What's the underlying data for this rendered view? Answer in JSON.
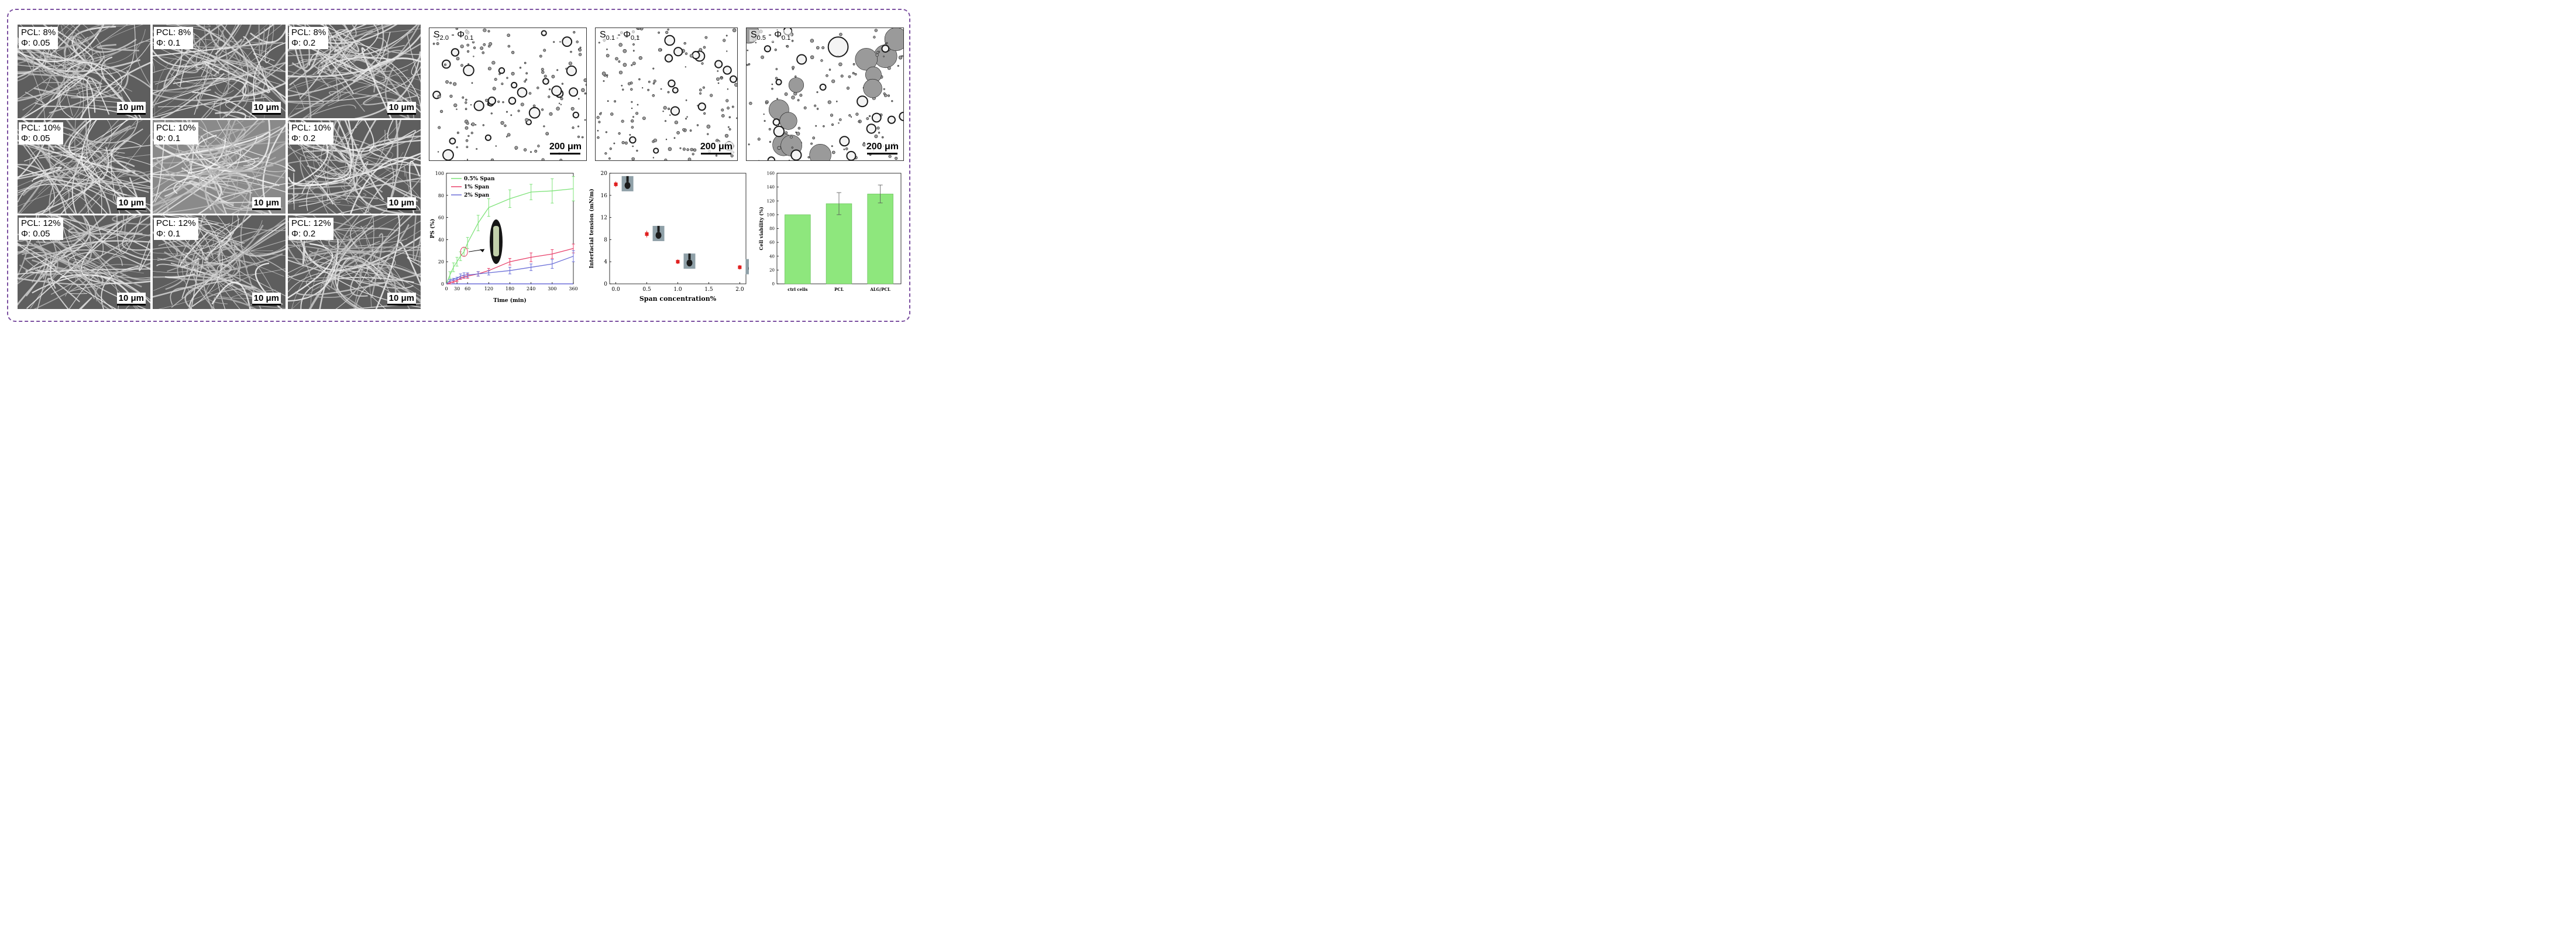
{
  "sem_panels": [
    {
      "line1": "PCL: 8%",
      "line2": "Φ: 0.05",
      "scale": "10 μm"
    },
    {
      "line1": "PCL: 8%",
      "line2": "Φ: 0.1",
      "scale": "10 μm"
    },
    {
      "line1": "PCL: 8%",
      "line2": "Φ: 0.2",
      "scale": "10 μm"
    },
    {
      "line1": "PCL: 10%",
      "line2": "Φ: 0.05",
      "scale": "10 μm"
    },
    {
      "line1": "PCL: 10%",
      "line2": "Φ: 0.1",
      "scale": "10 μm"
    },
    {
      "line1": "PCL: 10%",
      "line2": "Φ: 0.2",
      "scale": "10 μm"
    },
    {
      "line1": "PCL: 12%",
      "line2": "Φ: 0.05",
      "scale": "10 μm"
    },
    {
      "line1": "PCL: 12%",
      "line2": "Φ: 0.1",
      "scale": "10 μm"
    },
    {
      "line1": "PCL: 12%",
      "line2": "Φ: 0.2",
      "scale": "10 μm"
    }
  ],
  "micrographs": [
    {
      "s_main": "S",
      "s_sub": "2.0",
      "sep": " - ",
      "phi_main": "Φ",
      "phi_sub": "0.1",
      "scale": "200 μm"
    },
    {
      "s_main": "S",
      "s_sub": "0.1",
      "sep": " - ",
      "phi_main": "Φ",
      "phi_sub": "0.1",
      "scale": "200 μm"
    },
    {
      "s_main": "S",
      "s_sub": "0.5",
      "sep": " - ",
      "phi_main": "Φ",
      "phi_sub": "0.1",
      "scale": "200 μm"
    }
  ],
  "colors": {
    "frame": "#7b4fa0",
    "green": "#7fe37a",
    "red": "#e8406a",
    "blue": "#6b6fd8",
    "marker_red": "#e02020",
    "bar_green": "#8ee77d"
  },
  "chart_data": [
    {
      "type": "line",
      "xlabel": "Time (min)",
      "ylabel": "PS (%)",
      "xlim": [
        0,
        360
      ],
      "ylim": [
        0,
        100
      ],
      "xticks": [
        0,
        30,
        60,
        120,
        180,
        240,
        300,
        360
      ],
      "yticks": [
        0,
        20,
        40,
        60,
        80,
        100
      ],
      "legend_position": "top-left",
      "series": [
        {
          "name": "0.5% Span",
          "color": "#7fe37a",
          "x": [
            0,
            10,
            20,
            30,
            40,
            50,
            60,
            90,
            120,
            180,
            240,
            300,
            360
          ],
          "y": [
            0,
            8,
            15,
            20,
            25,
            29,
            37,
            55,
            69,
            77,
            83,
            84,
            86
          ],
          "err": [
            0,
            3,
            4,
            4,
            4,
            4,
            5,
            7,
            8,
            8,
            7,
            11,
            11
          ]
        },
        {
          "name": "1% Span",
          "color": "#e8406a",
          "x": [
            0,
            10,
            20,
            30,
            40,
            50,
            60,
            90,
            120,
            180,
            240,
            300,
            360
          ],
          "y": [
            0,
            1,
            2,
            3,
            5,
            6,
            7,
            9,
            12,
            20,
            24,
            27,
            32
          ],
          "err": [
            0,
            1,
            1,
            1,
            1,
            1,
            2,
            2,
            2,
            3,
            4,
            4,
            4
          ]
        },
        {
          "name": "2% Span",
          "color": "#6b6fd8",
          "x": [
            0,
            10,
            20,
            30,
            40,
            50,
            60,
            90,
            120,
            180,
            240,
            300,
            360
          ],
          "y": [
            0,
            3,
            4,
            5,
            7,
            8,
            8,
            9,
            10,
            12,
            15,
            18,
            25
          ],
          "err": [
            0,
            1,
            1,
            1,
            2,
            2,
            2,
            2,
            2,
            3,
            3,
            4,
            5
          ]
        }
      ]
    },
    {
      "type": "scatter",
      "xlabel": "Span concentration%",
      "ylabel": "Interfacial tension (mN/m)",
      "xlim": [
        -0.1,
        2.1
      ],
      "ylim": [
        0,
        20
      ],
      "xticks": [
        "0.0",
        "0.5",
        "1.0",
        "1.5",
        "2.0"
      ],
      "yticks": [
        0,
        4,
        8,
        12,
        16,
        20
      ],
      "points": [
        {
          "x": 0.0,
          "y": 18,
          "err": 0.5
        },
        {
          "x": 0.5,
          "y": 9,
          "err": 0.6
        },
        {
          "x": 1.0,
          "y": 4,
          "err": 0.4
        },
        {
          "x": 2.0,
          "y": 3,
          "err": 0.4
        }
      ]
    },
    {
      "type": "bar",
      "ylabel": "Cell viability (%)",
      "ylim": [
        0,
        160
      ],
      "yticks": [
        0,
        20,
        40,
        60,
        80,
        100,
        120,
        140,
        160
      ],
      "categories": [
        "ctrl cells",
        "PCL",
        "ALG/PCL"
      ],
      "values": [
        100,
        116,
        130
      ],
      "err": [
        0,
        16,
        13
      ]
    }
  ]
}
